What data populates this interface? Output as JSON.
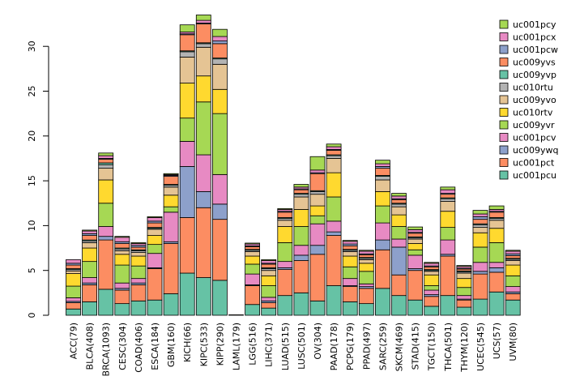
{
  "chart_data": {
    "type": "stacked-bar",
    "ylim": [
      0,
      34
    ],
    "y_ticks": [
      0,
      5,
      10,
      15,
      20,
      25,
      30
    ],
    "categories": [
      "ACC(79)",
      "BLCA(408)",
      "BRCA(1093)",
      "CESC(304)",
      "COAD(406)",
      "ESCA(184)",
      "GBM(160)",
      "KICH(66)",
      "KIPC(533)",
      "KIPP(290)",
      "LAML(179)",
      "LGG(516)",
      "LIHC(371)",
      "LUAD(515)",
      "LUSC(501)",
      "OV(304)",
      "PAAD(178)",
      "PCPG(179)",
      "PPAD(497)",
      "SARC(259)",
      "SKCM(469)",
      "STAD(415)",
      "TGCT(150)",
      "THCA(501)",
      "THYM(120)",
      "UCEC(545)",
      "UCS(57)",
      "UVM(80)"
    ],
    "series": [
      {
        "name": "uc001pcu",
        "color": "#66c2a5",
        "values": [
          0.7,
          1.5,
          2.9,
          1.3,
          1.6,
          1.7,
          2.4,
          4.7,
          4.2,
          3.9,
          0,
          1.2,
          0.8,
          2.2,
          2.5,
          1.6,
          3.3,
          1.5,
          1.3,
          3.0,
          2.2,
          1.7,
          1.0,
          2.2,
          0.9,
          1.8,
          2.6,
          1.7
        ]
      },
      {
        "name": "uc001pct",
        "color": "#fc8d62",
        "values": [
          0.7,
          1.9,
          5.5,
          1.5,
          1.8,
          3.5,
          5.6,
          6.2,
          7.8,
          6.8,
          0,
          2.1,
          0.6,
          2.9,
          3.6,
          5.2,
          5.6,
          1.7,
          1.7,
          4.3,
          2.3,
          3.3,
          1.1,
          4.4,
          0.8,
          2.8,
          2.2,
          0.7
        ]
      },
      {
        "name": "uc009ywq",
        "color": "#8da0cb",
        "values": [
          0.15,
          0.2,
          0.4,
          0.2,
          0.2,
          0.1,
          0.2,
          5.7,
          1.8,
          1.7,
          0,
          0.1,
          0.2,
          0.2,
          0.6,
          1.0,
          0.4,
          0.1,
          0.2,
          1.1,
          3.1,
          0.2,
          0.2,
          0.2,
          0.1,
          0.3,
          0.5,
          0.2
        ]
      },
      {
        "name": "uc001pcv",
        "color": "#e78ac3",
        "values": [
          0.4,
          0.6,
          1.1,
          0.6,
          0.5,
          1.6,
          3.3,
          2.8,
          4.1,
          3.3,
          0,
          1.2,
          0.4,
          0.7,
          1.1,
          2.4,
          1.2,
          0.8,
          0.3,
          1.9,
          0.9,
          1.5,
          0.5,
          1.6,
          0.4,
          1.0,
          0.6,
          0.6
        ]
      },
      {
        "name": "uc009yvr",
        "color": "#a6d854",
        "values": [
          1.3,
          1.8,
          2.6,
          2.0,
          1.4,
          1.0,
          0.6,
          2.6,
          5.9,
          6.8,
          0,
          1.1,
          1.3,
          2.1,
          2.1,
          0.9,
          2.7,
          1.3,
          1.4,
          1.9,
          1.4,
          0.6,
          0.5,
          1.4,
          0.9,
          1.7,
          2.2,
          1.2
        ]
      },
      {
        "name": "uc010rtv",
        "color": "#ffd92f",
        "values": [
          1.4,
          1.5,
          2.6,
          1.2,
          1.1,
          1.0,
          1.3,
          3.9,
          2.9,
          2.7,
          0,
          0.9,
          1.1,
          1.8,
          1.9,
          1.1,
          2.7,
          1.2,
          0.9,
          1.6,
          1.3,
          0.7,
          1.2,
          1.8,
          1.0,
          1.6,
          1.6,
          1.2
        ]
      },
      {
        "name": "uc009yvo",
        "color": "#e5c494",
        "values": [
          0.3,
          0.6,
          1.3,
          0.4,
          0.4,
          0.7,
          0.9,
          2.9,
          3.2,
          2.8,
          0,
          0.5,
          0.6,
          0.7,
          1.4,
          1.3,
          1.6,
          0.5,
          0.4,
          1.3,
          0.9,
          0.5,
          0.4,
          1.1,
          0.6,
          0.6,
          0.9,
          0.5
        ]
      },
      {
        "name": "uc010rtu",
        "color": "#b3b3b3",
        "values": [
          0.15,
          0.2,
          0.4,
          0.2,
          0.2,
          0.1,
          0.2,
          0.6,
          0.4,
          0.6,
          0,
          0.15,
          0.2,
          0.2,
          0.3,
          0.3,
          0.3,
          0.15,
          0.15,
          0.4,
          0.3,
          0.15,
          0.1,
          0.3,
          0.15,
          0.3,
          0.2,
          0.15
        ]
      },
      {
        "name": "uc009yvp",
        "color": "#66c2a5",
        "values": [
          0.1,
          0.1,
          0.2,
          0.1,
          0.1,
          0.1,
          0.1,
          0.1,
          0.1,
          0.1,
          0,
          0.1,
          0.1,
          0.1,
          0.1,
          0.1,
          0.1,
          0.1,
          0.1,
          0.1,
          0.1,
          0.1,
          0.1,
          0.1,
          0.1,
          0.1,
          0.1,
          0.1
        ]
      },
      {
        "name": "uc009yvs",
        "color": "#fc8d62",
        "values": [
          0.4,
          0.5,
          0.4,
          0.5,
          0.3,
          0.5,
          0.9,
          1.8,
          2.1,
          1.6,
          0,
          0.3,
          0.4,
          0.6,
          0.4,
          1.9,
          0.5,
          0.4,
          0.3,
          0.8,
          0.4,
          0.4,
          0.3,
          0.4,
          0.2,
          0.5,
          0.6,
          0.3
        ]
      },
      {
        "name": "uc001pcw",
        "color": "#8da0cb",
        "values": [
          0.2,
          0.2,
          0.1,
          0.2,
          0.2,
          0.2,
          0.1,
          0.1,
          0.1,
          0.3,
          0,
          0.1,
          0.1,
          0.1,
          0.1,
          0.1,
          0.1,
          0.2,
          0.1,
          0.2,
          0.1,
          0.1,
          0.1,
          0.1,
          0.1,
          0.3,
          0.1,
          0.2
        ]
      },
      {
        "name": "uc001pcx",
        "color": "#e78ac3",
        "values": [
          0.4,
          0.3,
          0.3,
          0.5,
          0.2,
          0.4,
          0.1,
          0.2,
          0.3,
          0.5,
          0,
          0.2,
          0.3,
          0.2,
          0.2,
          0.3,
          0.3,
          0.3,
          0.3,
          0.3,
          0.3,
          0.3,
          0.3,
          0.4,
          0.2,
          0.3,
          0.2,
          0.3
        ]
      },
      {
        "name": "uc001pcy",
        "color": "#a6d854",
        "values": [
          0.0,
          0.1,
          0.3,
          0.1,
          0.1,
          0.1,
          0.1,
          0.8,
          0.6,
          0.8,
          0.05,
          0.1,
          0.1,
          0.1,
          0.3,
          1.5,
          0.3,
          0.1,
          0.1,
          0.4,
          0.3,
          0.3,
          0.1,
          0.3,
          0.1,
          0.4,
          0.4,
          0.1
        ]
      }
    ]
  }
}
